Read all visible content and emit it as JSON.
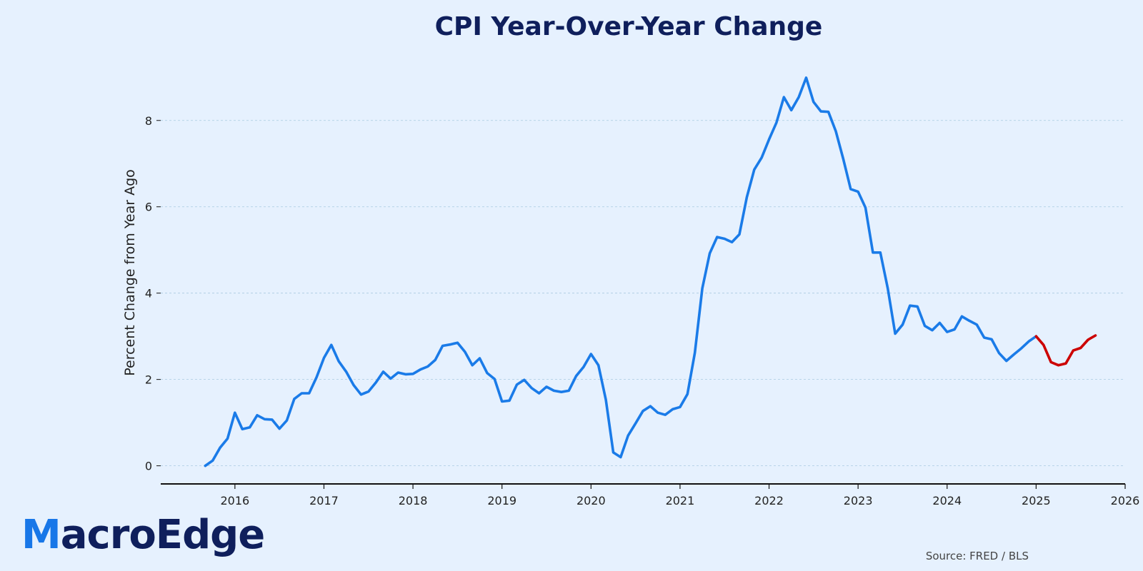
{
  "brand": {
    "first_letter": "M",
    "rest": "acroEdge",
    "accent_color": "#1877e8",
    "text_color": "#0f1f5c"
  },
  "source": "Source: FRED / BLS",
  "chart_data": {
    "type": "line",
    "title": "CPI Year-Over-Year Change",
    "xlabel": "",
    "ylabel": "Percent Change from Year Ago",
    "x_ticks": [
      "2016",
      "2017",
      "2018",
      "2019",
      "2020",
      "2021",
      "2022",
      "2023",
      "2024",
      "2025",
      "2026"
    ],
    "y_ticks": [
      "0",
      "2",
      "4",
      "6",
      "8"
    ],
    "xlim": [
      "2015-03",
      "2026-01"
    ],
    "ylim": [
      -0.42,
      9.6
    ],
    "grid": "horizontal dashed",
    "colors": {
      "history": "#1a7be8",
      "recent": "#cc0000",
      "grid": "#a8cbe0",
      "axis": "#111111"
    },
    "series": [
      {
        "x_start": "2015-09",
        "frequency": "monthly",
        "values": [
          0.0,
          0.12,
          0.42,
          0.63,
          1.23,
          0.85,
          0.89,
          1.17,
          1.08,
          1.07,
          0.86,
          1.05,
          1.55,
          1.68,
          1.68,
          2.05,
          2.5,
          2.8,
          2.42,
          2.18,
          1.87,
          1.65,
          1.72,
          1.93,
          2.18,
          2.02,
          2.16,
          2.12,
          2.13,
          2.23,
          2.3,
          2.45,
          2.78,
          2.81,
          2.85,
          2.64,
          2.33,
          2.49,
          2.15,
          2.01,
          1.49,
          1.51,
          1.88,
          1.99,
          1.8,
          1.68,
          1.83,
          1.74,
          1.71,
          1.74,
          2.08,
          2.29,
          2.59,
          2.33,
          1.53,
          0.31,
          0.2,
          0.7,
          0.98,
          1.27,
          1.38,
          1.23,
          1.18,
          1.31,
          1.36,
          1.66,
          2.62,
          4.11,
          4.92,
          5.3,
          5.26,
          5.18,
          5.36,
          6.22,
          6.86,
          7.14,
          7.56,
          7.95,
          8.54,
          8.24,
          8.54,
          8.99,
          8.43,
          8.21,
          8.2,
          7.75,
          7.11,
          6.41,
          6.35,
          5.98,
          4.94,
          4.94,
          4.11,
          3.06,
          3.27,
          3.71,
          3.69,
          3.24,
          3.14,
          3.31,
          3.1,
          3.16,
          3.46,
          3.36,
          3.27,
          2.97,
          2.93,
          2.61,
          2.43,
          2.58,
          2.72,
          2.88,
          3.0
        ]
      },
      {
        "x_start": "2025-01",
        "frequency": "monthly",
        "values": [
          3.0,
          2.8,
          2.4,
          2.33,
          2.37,
          2.67,
          2.73,
          2.92,
          3.02
        ]
      }
    ]
  }
}
